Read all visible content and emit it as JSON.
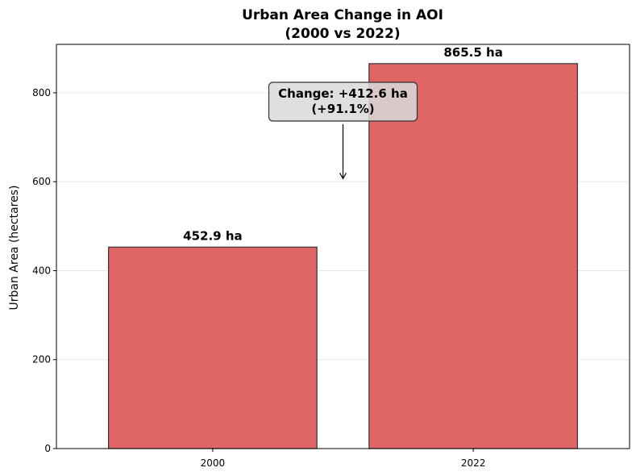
{
  "chart_data": {
    "type": "bar",
    "title_lines": [
      "Urban Area Change in AOI",
      "(2000 vs 2022)"
    ],
    "xlabel": "",
    "ylabel": "Urban Area (hectares)",
    "categories": [
      "2000",
      "2022"
    ],
    "values": [
      452.9,
      865.5
    ],
    "value_labels": [
      "452.9 ha",
      "865.5 ha"
    ],
    "ylim": [
      0,
      908.8
    ],
    "yticks": [
      0,
      200,
      400,
      600,
      800
    ],
    "grid": "y",
    "bar_color": "#e06666",
    "bar_edge_color": "#333333",
    "annotation": {
      "lines": [
        "Change: +412.6 ha",
        "(+91.1%)"
      ],
      "arrow_target_value": 607
    }
  }
}
